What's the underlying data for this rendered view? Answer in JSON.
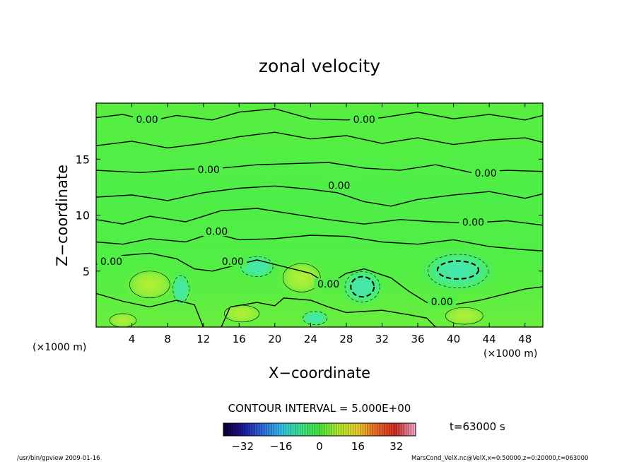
{
  "chart_data": {
    "type": "heatmap",
    "title": "zonal velocity",
    "xlabel": "X−coordinate",
    "ylabel": "Z−coordinate",
    "x_unit": "(×1000 m)",
    "y_unit": "(×1000 m)",
    "xlim": [
      0,
      50
    ],
    "ylim": [
      0,
      20
    ],
    "x_ticks": [
      4,
      8,
      12,
      16,
      20,
      24,
      28,
      32,
      36,
      40,
      44,
      48
    ],
    "y_ticks": [
      5,
      10,
      15
    ],
    "contour_interval_label": "CONTOUR INTERVAL = 5.000E+00",
    "time_label": "t=63000 s",
    "colorbar": {
      "range": [
        -40,
        40
      ],
      "ticks": [
        -32,
        -16,
        0,
        16,
        32
      ],
      "colors": [
        "#0d0030",
        "#1d1aa0",
        "#2a6ee0",
        "#32c4ee",
        "#3ce68c",
        "#44ee38",
        "#b4ee2a",
        "#eed024",
        "#ee6a22",
        "#d42a22",
        "#f0a8c8"
      ]
    },
    "contour_labels": [
      {
        "text": "0.00",
        "x": 5.7,
        "z": 18.5
      },
      {
        "text": "0.00",
        "x": 30.0,
        "z": 18.5
      },
      {
        "text": "0.00",
        "x": 12.6,
        "z": 14.0
      },
      {
        "text": "0.00",
        "x": 27.2,
        "z": 12.6
      },
      {
        "text": "0.00",
        "x": 43.6,
        "z": 13.7
      },
      {
        "text": "0.00",
        "x": 42.2,
        "z": 9.3
      },
      {
        "text": "0.00",
        "x": 13.5,
        "z": 8.5
      },
      {
        "text": "0.00",
        "x": 1.7,
        "z": 5.8
      },
      {
        "text": "0.00",
        "x": 15.3,
        "z": 5.8
      },
      {
        "text": "0.00",
        "x": 26.0,
        "z": 3.8
      },
      {
        "text": "0.00",
        "x": 38.7,
        "z": 2.2
      }
    ],
    "features": [
      {
        "kind": "positive",
        "x": 6.0,
        "z": 3.8,
        "rx": 3.0,
        "rz": 1.6,
        "value": 8
      },
      {
        "kind": "positive",
        "x": 16.3,
        "z": 1.2,
        "rx": 2.6,
        "rz": 1.0,
        "value": 6
      },
      {
        "kind": "positive",
        "x": 23.0,
        "z": 4.4,
        "rx": 2.8,
        "rz": 1.7,
        "value": 7
      },
      {
        "kind": "positive",
        "x": 41.2,
        "z": 1.0,
        "rx": 2.8,
        "rz": 1.0,
        "value": 10
      },
      {
        "kind": "positive",
        "x": 3.0,
        "z": 0.6,
        "rx": 2.0,
        "rz": 0.8,
        "value": 5
      },
      {
        "kind": "negative",
        "x": 29.8,
        "z": 3.6,
        "rx": 2.6,
        "rz": 1.8,
        "value": -12
      },
      {
        "kind": "negative",
        "x": 40.5,
        "z": 5.0,
        "rx": 4.5,
        "rz": 2.0,
        "value": -13
      },
      {
        "kind": "negative",
        "x": 18.0,
        "z": 5.4,
        "rx": 2.4,
        "rz": 1.2,
        "value": -6
      },
      {
        "kind": "negative",
        "x": 9.5,
        "z": 3.4,
        "rx": 1.2,
        "rz": 1.6,
        "value": -4
      },
      {
        "kind": "negative",
        "x": 24.5,
        "z": 0.8,
        "rx": 1.8,
        "rz": 0.8,
        "value": -4
      }
    ],
    "dashed_contours": [
      {
        "x": 29.8,
        "z": 3.6,
        "rx": 1.3,
        "rz": 0.9
      },
      {
        "x": 40.5,
        "z": 5.1,
        "rx": 2.3,
        "rz": 0.8
      }
    ],
    "zero_contours": [
      [
        [
          0,
          18.7
        ],
        [
          3,
          19.0
        ],
        [
          6,
          18.4
        ],
        [
          9,
          18.9
        ],
        [
          13,
          18.5
        ],
        [
          16,
          19.2
        ],
        [
          20,
          19.5
        ],
        [
          24,
          18.6
        ],
        [
          28,
          18.5
        ],
        [
          32,
          18.7
        ],
        [
          36,
          19.2
        ],
        [
          40,
          18.6
        ],
        [
          44,
          19.0
        ],
        [
          48,
          18.5
        ],
        [
          50,
          18.9
        ]
      ],
      [
        [
          0,
          16.2
        ],
        [
          4,
          16.6
        ],
        [
          8,
          16.0
        ],
        [
          12,
          16.4
        ],
        [
          16,
          17.0
        ],
        [
          20,
          17.4
        ],
        [
          24,
          16.8
        ],
        [
          28,
          17.1
        ],
        [
          32,
          16.4
        ],
        [
          36,
          16.9
        ],
        [
          40,
          16.3
        ],
        [
          44,
          16.7
        ],
        [
          48,
          16.9
        ],
        [
          50,
          16.5
        ]
      ],
      [
        [
          0,
          14.0
        ],
        [
          5,
          13.8
        ],
        [
          10,
          14.1
        ],
        [
          14,
          14.2
        ],
        [
          18,
          14.5
        ],
        [
          22,
          14.6
        ],
        [
          26,
          14.7
        ],
        [
          30,
          14.2
        ],
        [
          34,
          14.0
        ],
        [
          38,
          14.5
        ],
        [
          42,
          13.8
        ],
        [
          46,
          14.0
        ],
        [
          50,
          13.9
        ]
      ],
      [
        [
          0,
          11.6
        ],
        [
          4,
          11.8
        ],
        [
          8,
          11.3
        ],
        [
          12,
          12.0
        ],
        [
          16,
          12.4
        ],
        [
          20,
          12.6
        ],
        [
          24,
          12.3
        ],
        [
          27,
          12.0
        ],
        [
          30,
          11.2
        ],
        [
          33,
          10.8
        ],
        [
          36,
          11.4
        ],
        [
          40,
          11.8
        ],
        [
          44,
          12.1
        ],
        [
          48,
          11.5
        ],
        [
          50,
          11.9
        ]
      ],
      [
        [
          0,
          9.6
        ],
        [
          3,
          9.2
        ],
        [
          6,
          9.9
        ],
        [
          10,
          9.4
        ],
        [
          14,
          10.4
        ],
        [
          18,
          10.6
        ],
        [
          22,
          10.1
        ],
        [
          26,
          9.6
        ],
        [
          30,
          9.2
        ],
        [
          34,
          9.6
        ],
        [
          38,
          9.4
        ],
        [
          42,
          9.3
        ],
        [
          46,
          9.5
        ],
        [
          50,
          9.1
        ]
      ],
      [
        [
          0,
          7.6
        ],
        [
          3,
          7.4
        ],
        [
          6,
          7.9
        ],
        [
          10,
          7.6
        ],
        [
          13,
          8.4
        ],
        [
          16,
          7.8
        ],
        [
          20,
          7.9
        ],
        [
          24,
          8.2
        ],
        [
          28,
          8.1
        ],
        [
          32,
          7.6
        ],
        [
          36,
          7.4
        ],
        [
          40,
          7.8
        ],
        [
          44,
          7.2
        ],
        [
          48,
          6.9
        ],
        [
          50,
          6.8
        ]
      ],
      [
        [
          0,
          5.6
        ],
        [
          3,
          6.4
        ],
        [
          6,
          6.6
        ],
        [
          9,
          6.1
        ],
        [
          11,
          5.2
        ],
        [
          13,
          5.0
        ],
        [
          15,
          5.4
        ],
        [
          18,
          6.0
        ],
        [
          21,
          5.4
        ],
        [
          24,
          4.8
        ],
        [
          26,
          3.8
        ],
        [
          28,
          4.8
        ],
        [
          30,
          5.2
        ],
        [
          33,
          4.4
        ],
        [
          35,
          3.2
        ],
        [
          37,
          2.2
        ],
        [
          40,
          2.0
        ],
        [
          43,
          2.4
        ],
        [
          46,
          3.0
        ],
        [
          48,
          3.4
        ],
        [
          50,
          3.6
        ]
      ],
      [
        [
          0,
          3.0
        ],
        [
          3,
          2.3
        ],
        [
          6,
          1.8
        ],
        [
          9,
          2.4
        ],
        [
          11,
          2.0
        ],
        [
          12,
          0
        ]
      ],
      [
        [
          14,
          0
        ],
        [
          15,
          1.8
        ],
        [
          18,
          2.2
        ],
        [
          20,
          1.9
        ],
        [
          21,
          2.6
        ],
        [
          24,
          2.4
        ],
        [
          26,
          1.8
        ],
        [
          28,
          1.3
        ],
        [
          32,
          1.5
        ],
        [
          35,
          1.1
        ],
        [
          37,
          0.8
        ],
        [
          38,
          0
        ]
      ]
    ],
    "stamp_left": "/usr/bin/gpview   2009-01-16",
    "stamp_right": "MarsCond_VelX.nc@VelX,x=0:50000,z=0:20000,t=063000"
  }
}
